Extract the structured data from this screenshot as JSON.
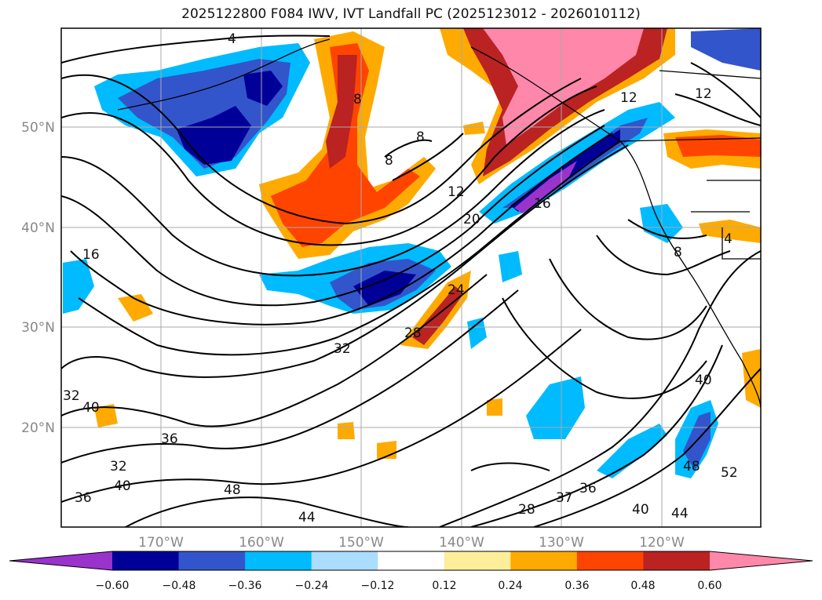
{
  "title": "2025122800 F084 IWV, IVT Landfall PC (2025123012 - 2026010112)",
  "lat_labels": [
    "50°N",
    "40°N",
    "30°N",
    "20°N"
  ],
  "lon_labels": [
    "170°W",
    "160°W",
    "150°W",
    "140°W",
    "130°W",
    "120°W"
  ],
  "colorbar": {
    "ticks": [
      "−0.60",
      "−0.48",
      "−0.36",
      "−0.24",
      "−0.12",
      "0.12",
      "0.24",
      "0.36",
      "0.48",
      "0.60"
    ],
    "colors": [
      "#9933cc",
      "#000099",
      "#3355cc",
      "#00bbff",
      "#aaddff",
      "#ffffff",
      "#ffee99",
      "#ffaa00",
      "#ff4400",
      "#bb2222",
      "#ff88aa"
    ]
  },
  "contour_labels": [
    "4",
    "8",
    "8",
    "8",
    "12",
    "12",
    "12",
    "16",
    "16",
    "20",
    "24",
    "28",
    "32",
    "32",
    "32",
    "36",
    "36",
    "40",
    "40",
    "40",
    "40",
    "44",
    "44",
    "48",
    "48",
    "52",
    "37",
    "36",
    "28",
    "4",
    "8"
  ]
}
